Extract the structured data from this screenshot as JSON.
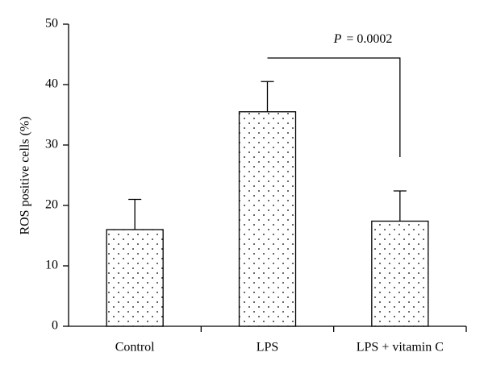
{
  "chart_data": {
    "type": "bar",
    "ylabel": "ROS positive cells (%)",
    "categories": [
      "Control",
      "LPS",
      "LPS + vitamin C"
    ],
    "values": [
      16,
      35.5,
      17.4
    ],
    "errors": [
      5,
      5,
      5
    ],
    "color": "#000000",
    "ylim": [
      0,
      50
    ],
    "yticks": [
      0,
      10,
      20,
      30,
      40,
      50
    ],
    "annotation": {
      "symbol": "P",
      "text": "= 0.0002"
    }
  }
}
